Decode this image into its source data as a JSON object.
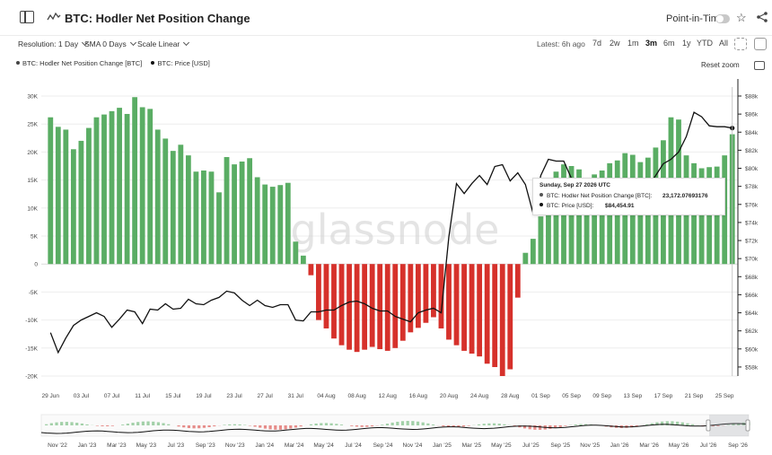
{
  "header": {
    "title": "BTC: Hodler Net Position Change",
    "point_in_time_label": "Point-in-Time"
  },
  "controls": {
    "resolution": "Resolution: 1 Day",
    "sma": "SMA 0 Days",
    "scale": "Scale Linear",
    "latest": "Latest: 6h ago",
    "ranges": [
      "7d",
      "2w",
      "1m",
      "3m",
      "6m",
      "1y",
      "YTD",
      "All"
    ],
    "active_range": "3m"
  },
  "legend": {
    "series1": "BTC: Hodler Net Position Change [BTC]",
    "series2": "BTC: Price [USD]"
  },
  "reset_zoom_label": "Reset zoom",
  "watermark": "glassnode",
  "tooltip": {
    "date": "Sunday, Sep 27 2026 UTC",
    "row1_label": "BTC: Hodler Net Position Change [BTC]:",
    "row1_value": "23,172.07693176",
    "row2_label": "BTC: Price [USD]:",
    "row2_value": "$84,454.91"
  },
  "colors": {
    "positive": "#5aad64",
    "negative": "#d6312b",
    "price_line": "#111111"
  },
  "chart_data": {
    "type": "bar",
    "x_tick_labels": [
      "29 Jun",
      "03 Jul",
      "07 Jul",
      "11 Jul",
      "15 Jul",
      "19 Jul",
      "23 Jul",
      "27 Jul",
      "31 Jul",
      "04 Aug",
      "08 Aug",
      "12 Aug",
      "16 Aug",
      "20 Aug",
      "24 Aug",
      "28 Aug",
      "01 Sep",
      "05 Sep",
      "09 Sep",
      "13 Sep",
      "17 Sep",
      "21 Sep",
      "25 Sep"
    ],
    "left_axis": {
      "ticks": [
        -20000,
        -15000,
        -10000,
        -5000,
        0,
        5000,
        10000,
        15000,
        20000,
        25000,
        30000
      ],
      "tick_labels": [
        "-20K",
        "-15K",
        "-10K",
        "-5K",
        "0",
        "5K",
        "10K",
        "15K",
        "20K",
        "25K",
        "30K"
      ],
      "ylim": [
        -20000,
        30000
      ]
    },
    "right_axis": {
      "ticks": [
        58000,
        60000,
        62000,
        64000,
        66000,
        68000,
        70000,
        72000,
        74000,
        76000,
        78000,
        80000,
        82000,
        84000,
        86000,
        88000
      ],
      "tick_labels": [
        "$58k",
        "$60k",
        "$62k",
        "$64k",
        "$66k",
        "$68k",
        "$70k",
        "$72k",
        "$74k",
        "$76k",
        "$78k",
        "$80k",
        "$82k",
        "$84k",
        "$86k",
        "$88k"
      ],
      "ylim": [
        57000,
        88000
      ]
    },
    "series": [
      {
        "name": "BTC: Hodler Net Position Change [BTC]",
        "type": "bar",
        "values": [
          26200,
          24500,
          24000,
          20500,
          22000,
          24300,
          26200,
          26700,
          27300,
          27900,
          26800,
          29800,
          28000,
          27700,
          24000,
          22400,
          20200,
          21300,
          19400,
          16500,
          16700,
          16500,
          12800,
          19100,
          17800,
          18300,
          18900,
          15500,
          14200,
          13800,
          14100,
          14500,
          4000,
          1500,
          -2000,
          -10000,
          -11500,
          -13300,
          -14500,
          -15300,
          -15700,
          -15300,
          -14800,
          -15200,
          -15500,
          -15000,
          -13700,
          -12200,
          -11400,
          -10500,
          -9500,
          -11500,
          -13500,
          -14500,
          -15500,
          -16000,
          -16500,
          -17800,
          -18400,
          -20000,
          -18800,
          -6000,
          2000,
          4500,
          8500,
          13500,
          16500,
          17800,
          17500,
          16900,
          15000,
          16000,
          16700,
          18000,
          18500,
          19800,
          19500,
          18200,
          19000,
          20800,
          22100,
          26200,
          25800,
          19400,
          18000,
          17100,
          17300,
          17400,
          19400,
          23172
        ]
      },
      {
        "name": "BTC: Price [USD]",
        "type": "line",
        "values": [
          61800,
          59600,
          61200,
          62600,
          63200,
          63600,
          64000,
          63600,
          62400,
          63300,
          64300,
          64100,
          62800,
          64400,
          64300,
          65000,
          64400,
          64500,
          65500,
          65000,
          64900,
          65400,
          65700,
          66400,
          66200,
          65400,
          64800,
          65400,
          64800,
          64600,
          64900,
          64900,
          63200,
          63100,
          64100,
          64100,
          64300,
          64300,
          64800,
          65200,
          65300,
          65000,
          64500,
          64200,
          64200,
          63600,
          63300,
          63000,
          64000,
          64300,
          64500,
          64000,
          72400,
          78300,
          77200,
          78300,
          79200,
          78200,
          80200,
          80400,
          78600,
          79500,
          78200,
          75000,
          79200,
          81000,
          80800,
          80800,
          78900,
          78200,
          78700,
          78200,
          77700,
          77500,
          77600,
          77200,
          76800,
          77300,
          78000,
          79200,
          80500,
          81000,
          81800,
          83500,
          86200,
          85700,
          84700,
          84600,
          84600,
          84455
        ]
      }
    ],
    "navigator": {
      "x_tick_labels": [
        "Nov '22",
        "Jan '23",
        "Mar '23",
        "May '23",
        "Jul '23",
        "Sep '23",
        "Nov '23",
        "Jan '24",
        "Mar '24",
        "May '24",
        "Jul '24",
        "Sep '24",
        "Nov '24",
        "Jan '25",
        "Mar '25",
        "May '25",
        "Jul '25",
        "Sep '25",
        "Nov '25",
        "Jan '26",
        "Mar '26",
        "May '26",
        "Jul '26",
        "Sep '26"
      ]
    }
  }
}
